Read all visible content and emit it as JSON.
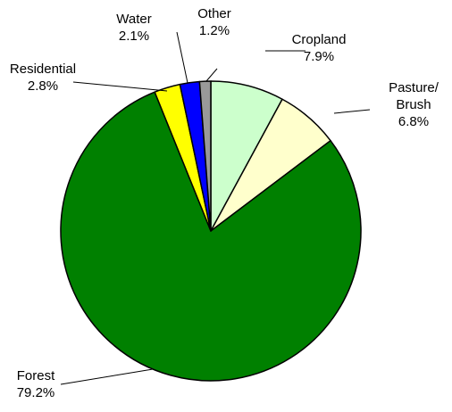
{
  "chart_data": {
    "type": "pie",
    "title": "",
    "slices": [
      {
        "label": "Cropland",
        "value_label": "7.9%",
        "value": 7.9,
        "color": "#ccffcc"
      },
      {
        "label": "Pasture/ Brush",
        "label_lines": [
          "Pasture/",
          "Brush"
        ],
        "value_label": "6.8%",
        "value": 6.8,
        "color": "#ffffcc"
      },
      {
        "label": "Forest",
        "value_label": "79.2%",
        "value": 79.2,
        "color": "#008000"
      },
      {
        "label": "Residential",
        "value_label": "2.8%",
        "value": 2.8,
        "color": "#ffff00"
      },
      {
        "label": "Water",
        "value_label": "2.1%",
        "value": 2.1,
        "color": "#0000ff"
      },
      {
        "label": "Other",
        "value_label": "1.2%",
        "value": 1.2,
        "color": "#999999"
      }
    ],
    "start_angle_deg": 0,
    "direction": "clockwise",
    "slice_border_color": "#000000",
    "leader_line_color": "#000000",
    "legend": "none"
  }
}
